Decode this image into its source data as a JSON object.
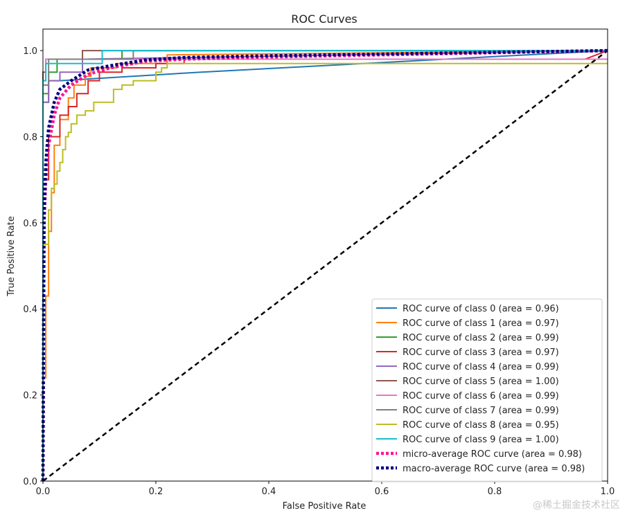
{
  "chart_data": {
    "type": "line",
    "title": "ROC Curves",
    "xlabel": "False Positive Rate",
    "ylabel": "True Positive Rate",
    "xlim": [
      0.0,
      1.0
    ],
    "ylim": [
      0.0,
      1.05
    ],
    "xticks": [
      0.0,
      0.2,
      0.4,
      0.6,
      0.8,
      1.0
    ],
    "yticks": [
      0.0,
      0.2,
      0.4,
      0.6,
      0.8,
      1.0
    ],
    "xtick_labels": [
      "0.0",
      "0.2",
      "0.4",
      "0.6",
      "0.8",
      "1.0"
    ],
    "ytick_labels": [
      "0.0",
      "0.2",
      "0.4",
      "0.6",
      "0.8",
      "1.0"
    ],
    "grid": false,
    "legend_position": "lower-right",
    "series": [
      {
        "name": "ROC curve of class 0 (area = 0.96)",
        "color": "#1f77b4",
        "style": "solid",
        "x": [
          0.0,
          0.0,
          0.01,
          0.01,
          0.03,
          0.03,
          0.28,
          1.0
        ],
        "y": [
          0.0,
          0.88,
          0.88,
          0.93,
          0.93,
          0.93,
          0.95,
          1.0
        ]
      },
      {
        "name": "ROC curve of class 1 (area = 0.97)",
        "color": "#ff7f0e",
        "style": "solid",
        "x": [
          0.0,
          0.0,
          0.005,
          0.005,
          0.01,
          0.01,
          0.015,
          0.015,
          0.02,
          0.02,
          0.03,
          0.03,
          0.045,
          0.045,
          0.055,
          0.055,
          0.075,
          0.075,
          0.085,
          0.085,
          0.13,
          0.13,
          0.22,
          0.22,
          1.0
        ],
        "y": [
          0.0,
          0.24,
          0.24,
          0.43,
          0.43,
          0.58,
          0.58,
          0.67,
          0.67,
          0.78,
          0.78,
          0.84,
          0.84,
          0.89,
          0.89,
          0.92,
          0.92,
          0.94,
          0.94,
          0.96,
          0.96,
          0.97,
          0.97,
          0.99,
          1.0
        ]
      },
      {
        "name": "ROC curve of class 2 (area = 0.99)",
        "color": "#2ca02c",
        "style": "solid",
        "x": [
          0.0,
          0.0,
          0.01,
          0.01,
          0.025,
          0.025,
          0.14,
          0.14,
          1.0
        ],
        "y": [
          0.0,
          0.9,
          0.9,
          0.95,
          0.95,
          0.98,
          0.98,
          1.0,
          1.0
        ]
      },
      {
        "name": "ROC curve of class 3 (area = 0.97)",
        "color": "#d62728",
        "style": "solid",
        "x": [
          0.0,
          0.0,
          0.01,
          0.01,
          0.03,
          0.03,
          0.045,
          0.045,
          0.06,
          0.06,
          0.08,
          0.08,
          0.1,
          0.1,
          0.14,
          0.14,
          0.2,
          0.2,
          0.25,
          0.25,
          0.96,
          1.0
        ],
        "y": [
          0.0,
          0.7,
          0.7,
          0.8,
          0.8,
          0.85,
          0.85,
          0.87,
          0.87,
          0.9,
          0.9,
          0.93,
          0.93,
          0.95,
          0.95,
          0.96,
          0.96,
          0.97,
          0.97,
          0.98,
          0.98,
          1.0
        ]
      },
      {
        "name": "ROC curve of class 4 (area = 0.99)",
        "color": "#9467bd",
        "style": "solid",
        "x": [
          0.0,
          0.0,
          0.01,
          0.01,
          0.03,
          0.03,
          0.07,
          0.07,
          1.0
        ],
        "y": [
          0.0,
          0.88,
          0.88,
          0.93,
          0.93,
          0.95,
          0.95,
          0.98,
          1.0
        ]
      },
      {
        "name": "ROC curve of class 5 (area = 1.00)",
        "color": "#8c564b",
        "style": "solid",
        "x": [
          0.0,
          0.0,
          0.005,
          0.005,
          0.07,
          0.07,
          1.0
        ],
        "y": [
          0.0,
          0.95,
          0.95,
          0.98,
          0.98,
          1.0,
          1.0
        ]
      },
      {
        "name": "ROC curve of class 6 (area = 0.99)",
        "color": "#e377c2",
        "style": "solid",
        "x": [
          0.0,
          0.0,
          0.005,
          0.005,
          1.0
        ],
        "y": [
          0.0,
          0.93,
          0.93,
          0.98,
          0.98
        ]
      },
      {
        "name": "ROC curve of class 7 (area = 0.99)",
        "color": "#7f7f7f",
        "style": "solid",
        "x": [
          0.0,
          0.0,
          0.01,
          0.01,
          0.16,
          0.16,
          1.0
        ],
        "y": [
          0.0,
          0.92,
          0.92,
          0.98,
          0.98,
          1.0,
          1.0
        ]
      },
      {
        "name": "ROC curve of class 8 (area = 0.95)",
        "color": "#bcbd22",
        "style": "solid",
        "x": [
          0.0,
          0.0,
          0.01,
          0.01,
          0.015,
          0.015,
          0.02,
          0.02,
          0.025,
          0.025,
          0.03,
          0.03,
          0.035,
          0.035,
          0.04,
          0.04,
          0.045,
          0.045,
          0.05,
          0.05,
          0.06,
          0.06,
          0.075,
          0.075,
          0.09,
          0.09,
          0.125,
          0.125,
          0.14,
          0.14,
          0.16,
          0.16,
          0.2,
          0.2,
          0.21,
          0.21,
          0.22,
          0.22,
          1.0
        ],
        "y": [
          0.0,
          0.55,
          0.55,
          0.63,
          0.63,
          0.68,
          0.68,
          0.69,
          0.69,
          0.72,
          0.72,
          0.74,
          0.74,
          0.77,
          0.77,
          0.8,
          0.8,
          0.81,
          0.81,
          0.83,
          0.83,
          0.85,
          0.85,
          0.86,
          0.86,
          0.88,
          0.88,
          0.91,
          0.91,
          0.92,
          0.92,
          0.93,
          0.93,
          0.95,
          0.95,
          0.96,
          0.96,
          0.97,
          0.97
        ]
      },
      {
        "name": "ROC curve of class 9 (area = 1.00)",
        "color": "#17becf",
        "style": "solid",
        "x": [
          0.0,
          0.0,
          0.005,
          0.005,
          0.105,
          0.105,
          1.0
        ],
        "y": [
          0.0,
          0.93,
          0.93,
          0.97,
          0.97,
          1.0,
          1.0
        ]
      },
      {
        "name": "micro-average ROC curve (area = 0.98)",
        "color": "#ff1493",
        "style": "dotted",
        "x": [
          0.0,
          0.002,
          0.005,
          0.01,
          0.02,
          0.03,
          0.05,
          0.08,
          0.12,
          0.18,
          0.25,
          0.4,
          0.6,
          0.8,
          1.0
        ],
        "y": [
          0.0,
          0.6,
          0.7,
          0.78,
          0.85,
          0.89,
          0.92,
          0.945,
          0.96,
          0.975,
          0.98,
          0.985,
          0.99,
          0.995,
          1.0
        ]
      },
      {
        "name": "macro-average ROC curve (area = 0.98)",
        "color": "#000080",
        "style": "dotted",
        "x": [
          0.0,
          0.002,
          0.005,
          0.01,
          0.02,
          0.03,
          0.05,
          0.08,
          0.12,
          0.18,
          0.25,
          0.4,
          0.6,
          0.8,
          1.0
        ],
        "y": [
          0.0,
          0.62,
          0.74,
          0.82,
          0.88,
          0.91,
          0.93,
          0.955,
          0.965,
          0.978,
          0.984,
          0.988,
          0.992,
          0.996,
          1.0
        ]
      }
    ],
    "reference_line": {
      "x": [
        0.0,
        1.0
      ],
      "y": [
        0.0,
        1.0
      ],
      "color": "#000000",
      "style": "dashed"
    }
  },
  "watermark": "@稀土掘金技术社区"
}
